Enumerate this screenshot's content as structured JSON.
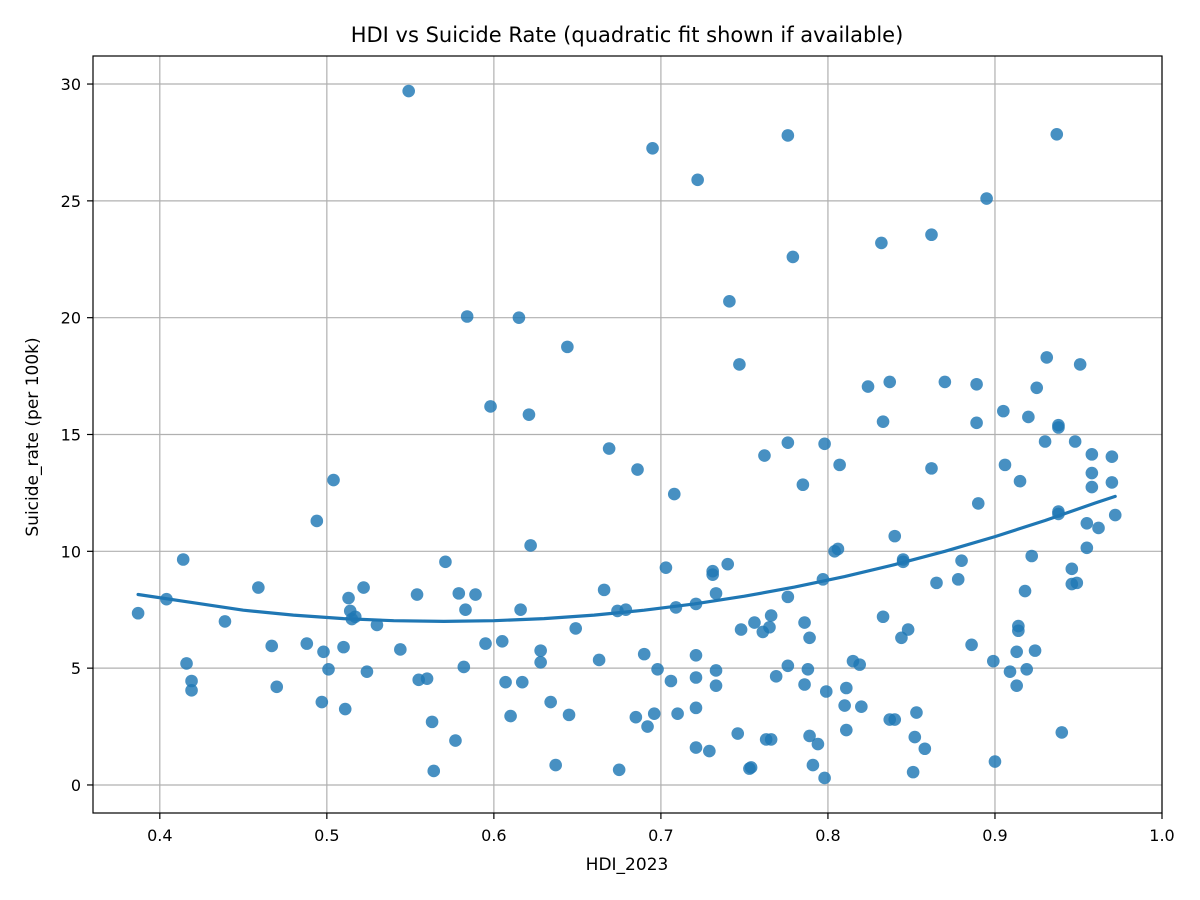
{
  "chart_data": {
    "type": "scatter",
    "title": "HDI vs Suicide Rate (quadratic fit shown if available)",
    "xlabel": "HDI_2023",
    "ylabel": "Suicide_rate (per 100k)",
    "xlim": [
      0.36,
      1.0
    ],
    "ylim": [
      -1.2,
      31.2
    ],
    "xticks": [
      "0.4",
      "0.5",
      "0.6",
      "0.7",
      "0.8",
      "0.9",
      "1.0"
    ],
    "yticks": [
      "0",
      "5",
      "10",
      "15",
      "20",
      "25",
      "30"
    ],
    "grid": true,
    "colors": {
      "points": "#1f77b4",
      "fit": "#1f77b4",
      "grid": "#b0b0b0"
    },
    "series": [
      {
        "kind": "scatter",
        "points": [
          [
            0.387,
            7.35
          ],
          [
            0.404,
            7.95
          ],
          [
            0.414,
            9.65
          ],
          [
            0.416,
            5.2
          ],
          [
            0.419,
            4.45
          ],
          [
            0.419,
            4.05
          ],
          [
            0.439,
            7.0
          ],
          [
            0.459,
            8.45
          ],
          [
            0.467,
            5.95
          ],
          [
            0.47,
            4.2
          ],
          [
            0.488,
            6.05
          ],
          [
            0.494,
            11.3
          ],
          [
            0.497,
            3.55
          ],
          [
            0.498,
            5.7
          ],
          [
            0.501,
            4.95
          ],
          [
            0.504,
            13.05
          ],
          [
            0.51,
            5.9
          ],
          [
            0.511,
            3.25
          ],
          [
            0.513,
            8.0
          ],
          [
            0.514,
            7.45
          ],
          [
            0.515,
            7.1
          ],
          [
            0.517,
            7.2
          ],
          [
            0.522,
            8.45
          ],
          [
            0.524,
            4.85
          ],
          [
            0.53,
            6.85
          ],
          [
            0.544,
            5.8
          ],
          [
            0.549,
            29.7
          ],
          [
            0.554,
            8.15
          ],
          [
            0.555,
            4.5
          ],
          [
            0.56,
            4.55
          ],
          [
            0.563,
            2.7
          ],
          [
            0.564,
            0.6
          ],
          [
            0.571,
            9.55
          ],
          [
            0.577,
            1.9
          ],
          [
            0.579,
            8.2
          ],
          [
            0.582,
            5.05
          ],
          [
            0.583,
            7.5
          ],
          [
            0.584,
            20.05
          ],
          [
            0.589,
            8.15
          ],
          [
            0.595,
            6.05
          ],
          [
            0.598,
            16.2
          ],
          [
            0.605,
            6.15
          ],
          [
            0.607,
            4.4
          ],
          [
            0.61,
            2.95
          ],
          [
            0.615,
            20.0
          ],
          [
            0.616,
            7.5
          ],
          [
            0.617,
            4.4
          ],
          [
            0.621,
            15.85
          ],
          [
            0.622,
            10.25
          ],
          [
            0.628,
            5.75
          ],
          [
            0.628,
            5.25
          ],
          [
            0.634,
            3.55
          ],
          [
            0.637,
            0.85
          ],
          [
            0.644,
            18.75
          ],
          [
            0.645,
            3.0
          ],
          [
            0.649,
            6.7
          ],
          [
            0.663,
            5.35
          ],
          [
            0.666,
            8.35
          ],
          [
            0.669,
            14.4
          ],
          [
            0.674,
            7.45
          ],
          [
            0.675,
            0.65
          ],
          [
            0.679,
            7.5
          ],
          [
            0.685,
            2.9
          ],
          [
            0.686,
            13.5
          ],
          [
            0.69,
            5.6
          ],
          [
            0.692,
            2.5
          ],
          [
            0.695,
            27.25
          ],
          [
            0.696,
            3.05
          ],
          [
            0.698,
            4.95
          ],
          [
            0.703,
            9.3
          ],
          [
            0.706,
            4.45
          ],
          [
            0.708,
            12.45
          ],
          [
            0.709,
            7.6
          ],
          [
            0.71,
            3.05
          ],
          [
            0.721,
            7.75
          ],
          [
            0.721,
            5.55
          ],
          [
            0.721,
            4.6
          ],
          [
            0.721,
            3.3
          ],
          [
            0.721,
            1.6
          ],
          [
            0.722,
            25.9
          ],
          [
            0.729,
            1.45
          ],
          [
            0.731,
            9.15
          ],
          [
            0.731,
            9.0
          ],
          [
            0.733,
            8.2
          ],
          [
            0.733,
            4.9
          ],
          [
            0.733,
            4.25
          ],
          [
            0.74,
            9.45
          ],
          [
            0.741,
            20.7
          ],
          [
            0.746,
            2.2
          ],
          [
            0.747,
            18.0
          ],
          [
            0.748,
            6.65
          ],
          [
            0.753,
            0.7
          ],
          [
            0.754,
            0.75
          ],
          [
            0.756,
            6.95
          ],
          [
            0.761,
            6.55
          ],
          [
            0.762,
            14.1
          ],
          [
            0.763,
            1.95
          ],
          [
            0.765,
            6.75
          ],
          [
            0.766,
            7.25
          ],
          [
            0.766,
            1.95
          ],
          [
            0.769,
            4.65
          ],
          [
            0.776,
            27.8
          ],
          [
            0.776,
            14.65
          ],
          [
            0.776,
            8.05
          ],
          [
            0.776,
            5.1
          ],
          [
            0.779,
            22.6
          ],
          [
            0.785,
            12.85
          ],
          [
            0.786,
            6.95
          ],
          [
            0.786,
            4.3
          ],
          [
            0.788,
            4.95
          ],
          [
            0.789,
            6.3
          ],
          [
            0.789,
            2.1
          ],
          [
            0.791,
            0.85
          ],
          [
            0.794,
            1.75
          ],
          [
            0.797,
            8.8
          ],
          [
            0.798,
            14.6
          ],
          [
            0.798,
            0.3
          ],
          [
            0.799,
            4.0
          ],
          [
            0.804,
            10.0
          ],
          [
            0.806,
            10.1
          ],
          [
            0.807,
            13.7
          ],
          [
            0.81,
            3.4
          ],
          [
            0.811,
            2.35
          ],
          [
            0.811,
            4.15
          ],
          [
            0.815,
            5.3
          ],
          [
            0.819,
            5.15
          ],
          [
            0.82,
            3.35
          ],
          [
            0.824,
            17.05
          ],
          [
            0.832,
            23.2
          ],
          [
            0.833,
            7.2
          ],
          [
            0.833,
            15.55
          ],
          [
            0.837,
            17.25
          ],
          [
            0.837,
            2.8
          ],
          [
            0.84,
            2.8
          ],
          [
            0.84,
            10.65
          ],
          [
            0.844,
            6.3
          ],
          [
            0.845,
            9.65
          ],
          [
            0.845,
            9.55
          ],
          [
            0.848,
            6.65
          ],
          [
            0.851,
            0.55
          ],
          [
            0.852,
            2.05
          ],
          [
            0.853,
            3.1
          ],
          [
            0.858,
            1.55
          ],
          [
            0.862,
            23.55
          ],
          [
            0.862,
            13.55
          ],
          [
            0.865,
            8.65
          ],
          [
            0.87,
            17.25
          ],
          [
            0.878,
            8.8
          ],
          [
            0.88,
            9.6
          ],
          [
            0.886,
            6.0
          ],
          [
            0.889,
            17.15
          ],
          [
            0.889,
            15.5
          ],
          [
            0.89,
            12.05
          ],
          [
            0.895,
            25.1
          ],
          [
            0.899,
            5.3
          ],
          [
            0.9,
            1.0
          ],
          [
            0.905,
            16.0
          ],
          [
            0.906,
            13.7
          ],
          [
            0.909,
            4.85
          ],
          [
            0.913,
            5.7
          ],
          [
            0.913,
            4.25
          ],
          [
            0.914,
            6.8
          ],
          [
            0.914,
            6.6
          ],
          [
            0.915,
            13.0
          ],
          [
            0.918,
            8.3
          ],
          [
            0.919,
            4.95
          ],
          [
            0.92,
            15.75
          ],
          [
            0.922,
            9.8
          ],
          [
            0.924,
            5.75
          ],
          [
            0.925,
            17.0
          ],
          [
            0.93,
            14.7
          ],
          [
            0.931,
            18.3
          ],
          [
            0.937,
            27.85
          ],
          [
            0.938,
            15.4
          ],
          [
            0.938,
            15.3
          ],
          [
            0.938,
            11.7
          ],
          [
            0.938,
            11.6
          ],
          [
            0.94,
            2.25
          ],
          [
            0.946,
            8.6
          ],
          [
            0.946,
            9.25
          ],
          [
            0.948,
            14.7
          ],
          [
            0.949,
            8.65
          ],
          [
            0.951,
            18.0
          ],
          [
            0.955,
            11.2
          ],
          [
            0.955,
            10.15
          ],
          [
            0.958,
            14.15
          ],
          [
            0.958,
            13.35
          ],
          [
            0.958,
            12.75
          ],
          [
            0.962,
            11.0
          ],
          [
            0.97,
            14.05
          ],
          [
            0.97,
            12.95
          ],
          [
            0.972,
            11.55
          ]
        ]
      },
      {
        "kind": "line",
        "points": [
          [
            0.387,
            8.15
          ],
          [
            0.42,
            7.8
          ],
          [
            0.45,
            7.48
          ],
          [
            0.48,
            7.27
          ],
          [
            0.51,
            7.12
          ],
          [
            0.54,
            7.03
          ],
          [
            0.57,
            7.0
          ],
          [
            0.6,
            7.03
          ],
          [
            0.63,
            7.12
          ],
          [
            0.66,
            7.27
          ],
          [
            0.69,
            7.48
          ],
          [
            0.72,
            7.75
          ],
          [
            0.75,
            8.08
          ],
          [
            0.78,
            8.47
          ],
          [
            0.81,
            8.92
          ],
          [
            0.84,
            9.43
          ],
          [
            0.87,
            10.0
          ],
          [
            0.9,
            10.63
          ],
          [
            0.93,
            11.32
          ],
          [
            0.96,
            12.07
          ],
          [
            0.972,
            12.35
          ]
        ]
      }
    ]
  }
}
